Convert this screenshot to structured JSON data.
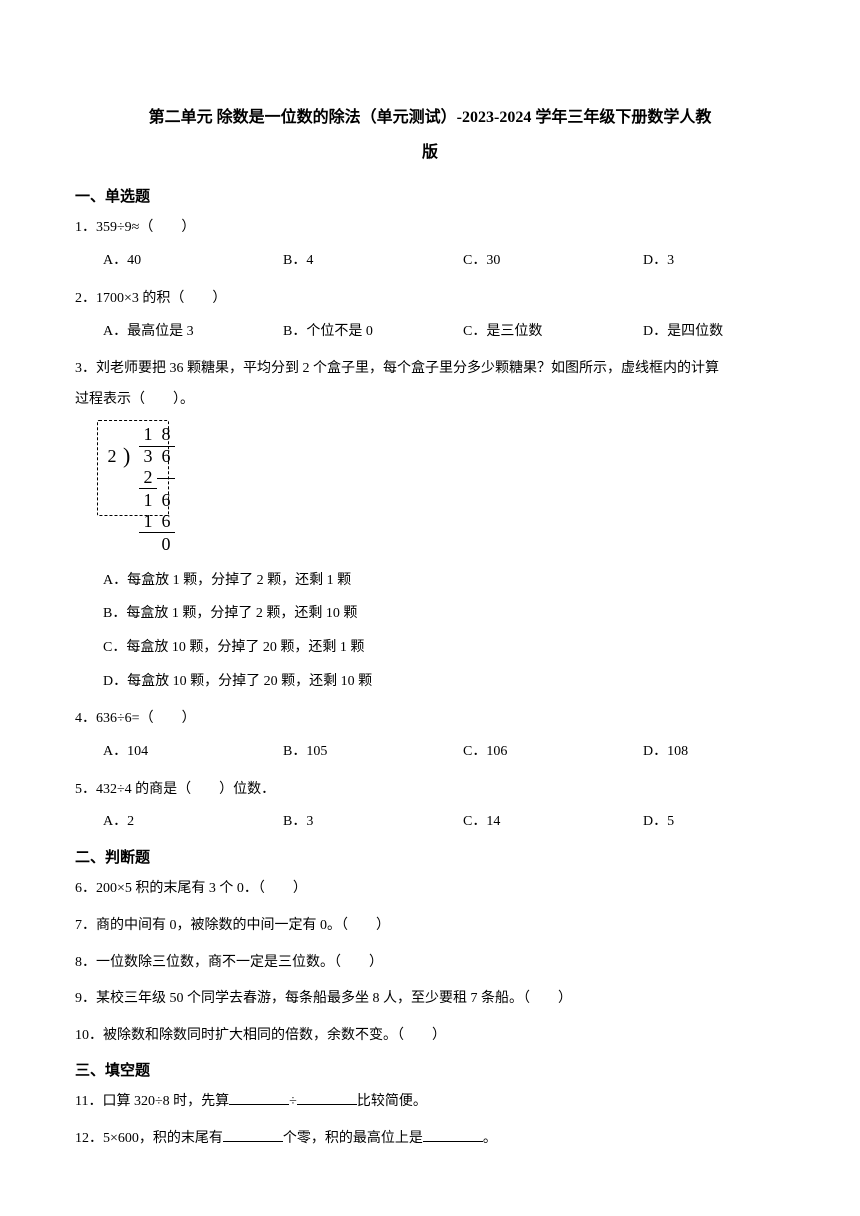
{
  "title_line1": "第二单元 除数是一位数的除法（单元测试）-2023-2024 学年三年级下册数学人教",
  "title_line2": "版",
  "sections": {
    "s1": "一、单选题",
    "s2": "二、判断题",
    "s3": "三、填空题"
  },
  "q1": {
    "text": "1．359÷9≈（　　）",
    "A": "A．40",
    "B": "B．4",
    "C": "C．30",
    "D": "D．3"
  },
  "q2": {
    "text": "2．1700×3 的积（　　）",
    "A": "A．最高位是 3",
    "B": "B．个位不是 0",
    "C": "C．是三位数",
    "D": "D．是四位数"
  },
  "q3": {
    "text_p1": "3．刘老师要把 36 颗糖果，平均分到 2 个盒子里，每个盒子里分多少颗糖果？如图所示，虚线框内的计算",
    "text_p2": "过程表示（　　）。",
    "division": {
      "divisor": "2",
      "dividend": [
        "3",
        "6"
      ],
      "quotient": [
        "1",
        "8"
      ],
      "step1": "2",
      "remainder1": [
        "1",
        "6"
      ],
      "step2": [
        "1",
        "6"
      ],
      "remainder2": "0"
    },
    "A": "A．每盒放 1 颗，分掉了 2 颗，还剩 1 颗",
    "B": "B．每盒放 1 颗，分掉了 2 颗，还剩 10 颗",
    "C": "C．每盒放 10 颗，分掉了 20 颗，还剩 1 颗",
    "D": "D．每盒放 10 颗，分掉了 20 颗，还剩 10 颗"
  },
  "q4": {
    "text": "4．636÷6=（　　）",
    "A": "A．104",
    "B": "B．105",
    "C": "C．106",
    "D": "D．108"
  },
  "q5": {
    "text": "5．432÷4 的商是（　　）位数．",
    "A": "A．2",
    "B": "B．3",
    "C": "C．14",
    "D": "D．5"
  },
  "q6": {
    "text": "6．200×5 积的末尾有 3 个 0．（　　）"
  },
  "q7": {
    "text": "7．商的中间有 0，被除数的中间一定有 0。（　　）"
  },
  "q8": {
    "text": "8．一位数除三位数，商不一定是三位数。（　　）"
  },
  "q9": {
    "text": "9．某校三年级 50 个同学去春游，每条船最多坐 8 人，至少要租 7 条船。（　　）"
  },
  "q10": {
    "text": "10．被除数和除数同时扩大相同的倍数，余数不变。（　　）"
  },
  "q11": {
    "pre": "11．口算 320÷8 时，先算",
    "mid": "÷",
    "post": "比较简便。"
  },
  "q12": {
    "pre": "12．5×600，积的末尾有",
    "mid": "个零，积的最高位上是",
    "post": "。"
  }
}
